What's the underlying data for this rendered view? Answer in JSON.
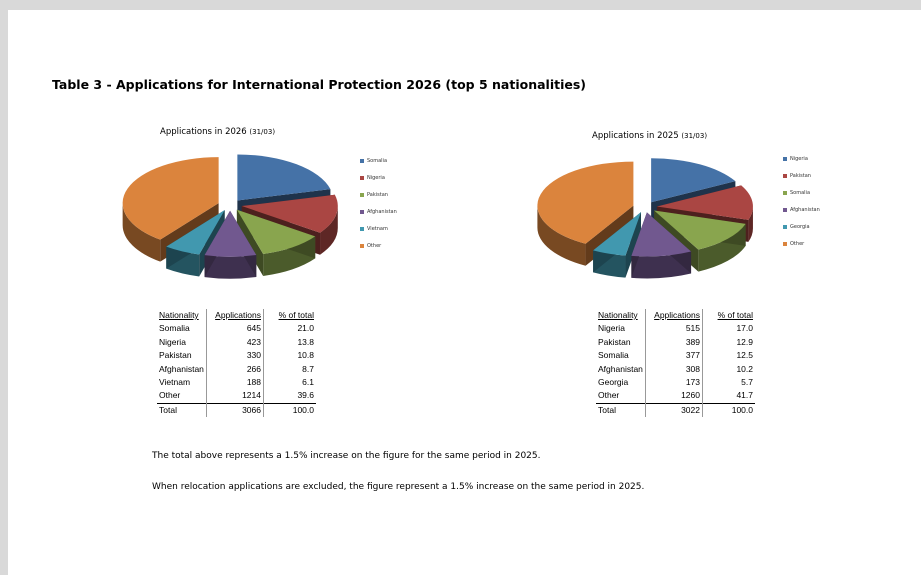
{
  "heading": "Table 3 - Applications for International Protection 2026 (top 5 nationalities)",
  "chart_data": [
    {
      "type": "pie",
      "title": "Applications in 2026",
      "subtitle": "(31/03)",
      "categories": [
        "Somalia",
        "Nigeria",
        "Pakistan",
        "Afghanistan",
        "Vietnam",
        "Other"
      ],
      "values": [
        645,
        423,
        330,
        266,
        188,
        1214
      ],
      "colors": [
        "#4572a7",
        "#aa4643",
        "#89a54e",
        "#71588f",
        "#4198af",
        "#db843d"
      ],
      "legend": "right",
      "exploded": true
    },
    {
      "type": "pie",
      "title": "Applications in 2025",
      "subtitle": "(31/03)",
      "categories": [
        "Nigeria",
        "Pakistan",
        "Somalia",
        "Afghanistan",
        "Georgia",
        "Other"
      ],
      "values": [
        515,
        389,
        377,
        308,
        173,
        1260
      ],
      "colors": [
        "#4572a7",
        "#aa4643",
        "#89a54e",
        "#71588f",
        "#4198af",
        "#db843d"
      ],
      "legend": "right",
      "exploded": true
    }
  ],
  "tables": [
    {
      "headers": [
        "Nationality",
        "Applications",
        "% of total"
      ],
      "rows": [
        [
          "Somalia",
          "645",
          "21.0"
        ],
        [
          "Nigeria",
          "423",
          "13.8"
        ],
        [
          "Pakistan",
          "330",
          "10.8"
        ],
        [
          "Afghanistan",
          "266",
          "8.7"
        ],
        [
          "Vietnam",
          "188",
          "6.1"
        ],
        [
          "Other",
          "1214",
          "39.6"
        ]
      ],
      "total": [
        "Total",
        "3066",
        "100.0"
      ]
    },
    {
      "headers": [
        "Nationality",
        "Applications",
        "% of total"
      ],
      "rows": [
        [
          "Nigeria",
          "515",
          "17.0"
        ],
        [
          "Pakistan",
          "389",
          "12.9"
        ],
        [
          "Somalia",
          "377",
          "12.5"
        ],
        [
          "Afghanistan",
          "308",
          "10.2"
        ],
        [
          "Georgia",
          "173",
          "5.7"
        ],
        [
          "Other",
          "1260",
          "41.7"
        ]
      ],
      "total": [
        "Total",
        "3022",
        "100.0"
      ]
    }
  ],
  "notes": [
    "The total above represents a 1.5% increase on the figure for the same period in 2025.",
    "When relocation applications are excluded, the figure represent a 1.5% increase on the same period in 2025."
  ]
}
